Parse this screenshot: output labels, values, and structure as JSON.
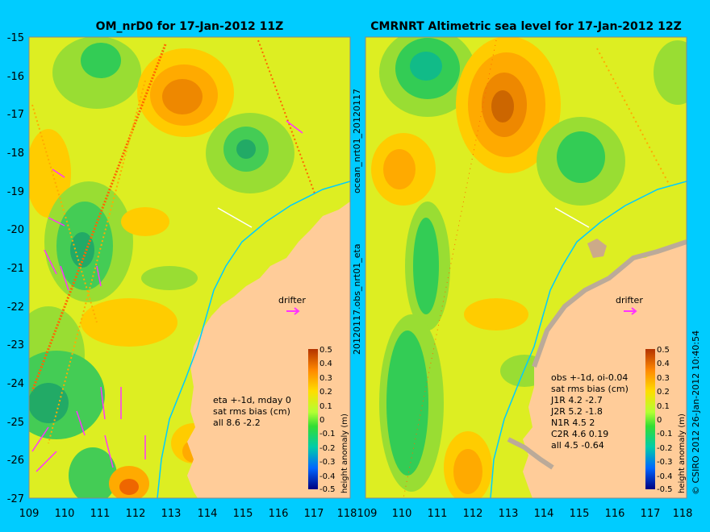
{
  "panels": [
    {
      "title": "OM_nrD0 for 17-Jan-2012 11Z",
      "drifter_label": "drifter",
      "stats_lines": [
        "eta +-1d, mday 0",
        "sat rms bias (cm)",
        "all 8.6 -2.2"
      ],
      "x_ticks": [
        "109",
        "110",
        "111",
        "112",
        "113",
        "114",
        "115",
        "116",
        "117",
        "118"
      ],
      "y_ticks": [
        "-15",
        "-16",
        "-17",
        "-18",
        "-19",
        "-20",
        "-21",
        "-22",
        "-23",
        "-24",
        "-25",
        "-26",
        "-27"
      ]
    },
    {
      "title": "CMRNRT Altimetric sea level  for 17-Jan-2012 12Z",
      "drifter_label": "drifter",
      "stats_lines": [
        "obs +-1d, oi-0.04",
        "sat rms bias (cm)",
        "J1R  4.2 -2.7",
        "J2R  5.2 -1.8",
        "N1R  4.5 2",
        "C2R  4.6 0.19",
        "all 4.5 -0.64"
      ],
      "x_ticks": [
        "109",
        "110",
        "111",
        "112",
        "113",
        "114",
        "115",
        "116",
        "117",
        "118"
      ]
    }
  ],
  "colorbar": {
    "label": "height anomaly (m)",
    "ticks": [
      "0.5",
      "0.4",
      "0.3",
      "0.2",
      "0.1",
      "0",
      "-0.1",
      "-0.2",
      "-0.3",
      "-0.4",
      "-0.5"
    ]
  },
  "side_labels": {
    "left_file": "ocean_nrt01_20120117",
    "right_file": "20120117.obs_nrt01_eta"
  },
  "copyright": "© CSIRO 2012  26-Jan-2012 10:40:54",
  "colors": {
    "background": "#00ccff",
    "land": "#ffcc99",
    "arrows": "#ff33ff"
  }
}
